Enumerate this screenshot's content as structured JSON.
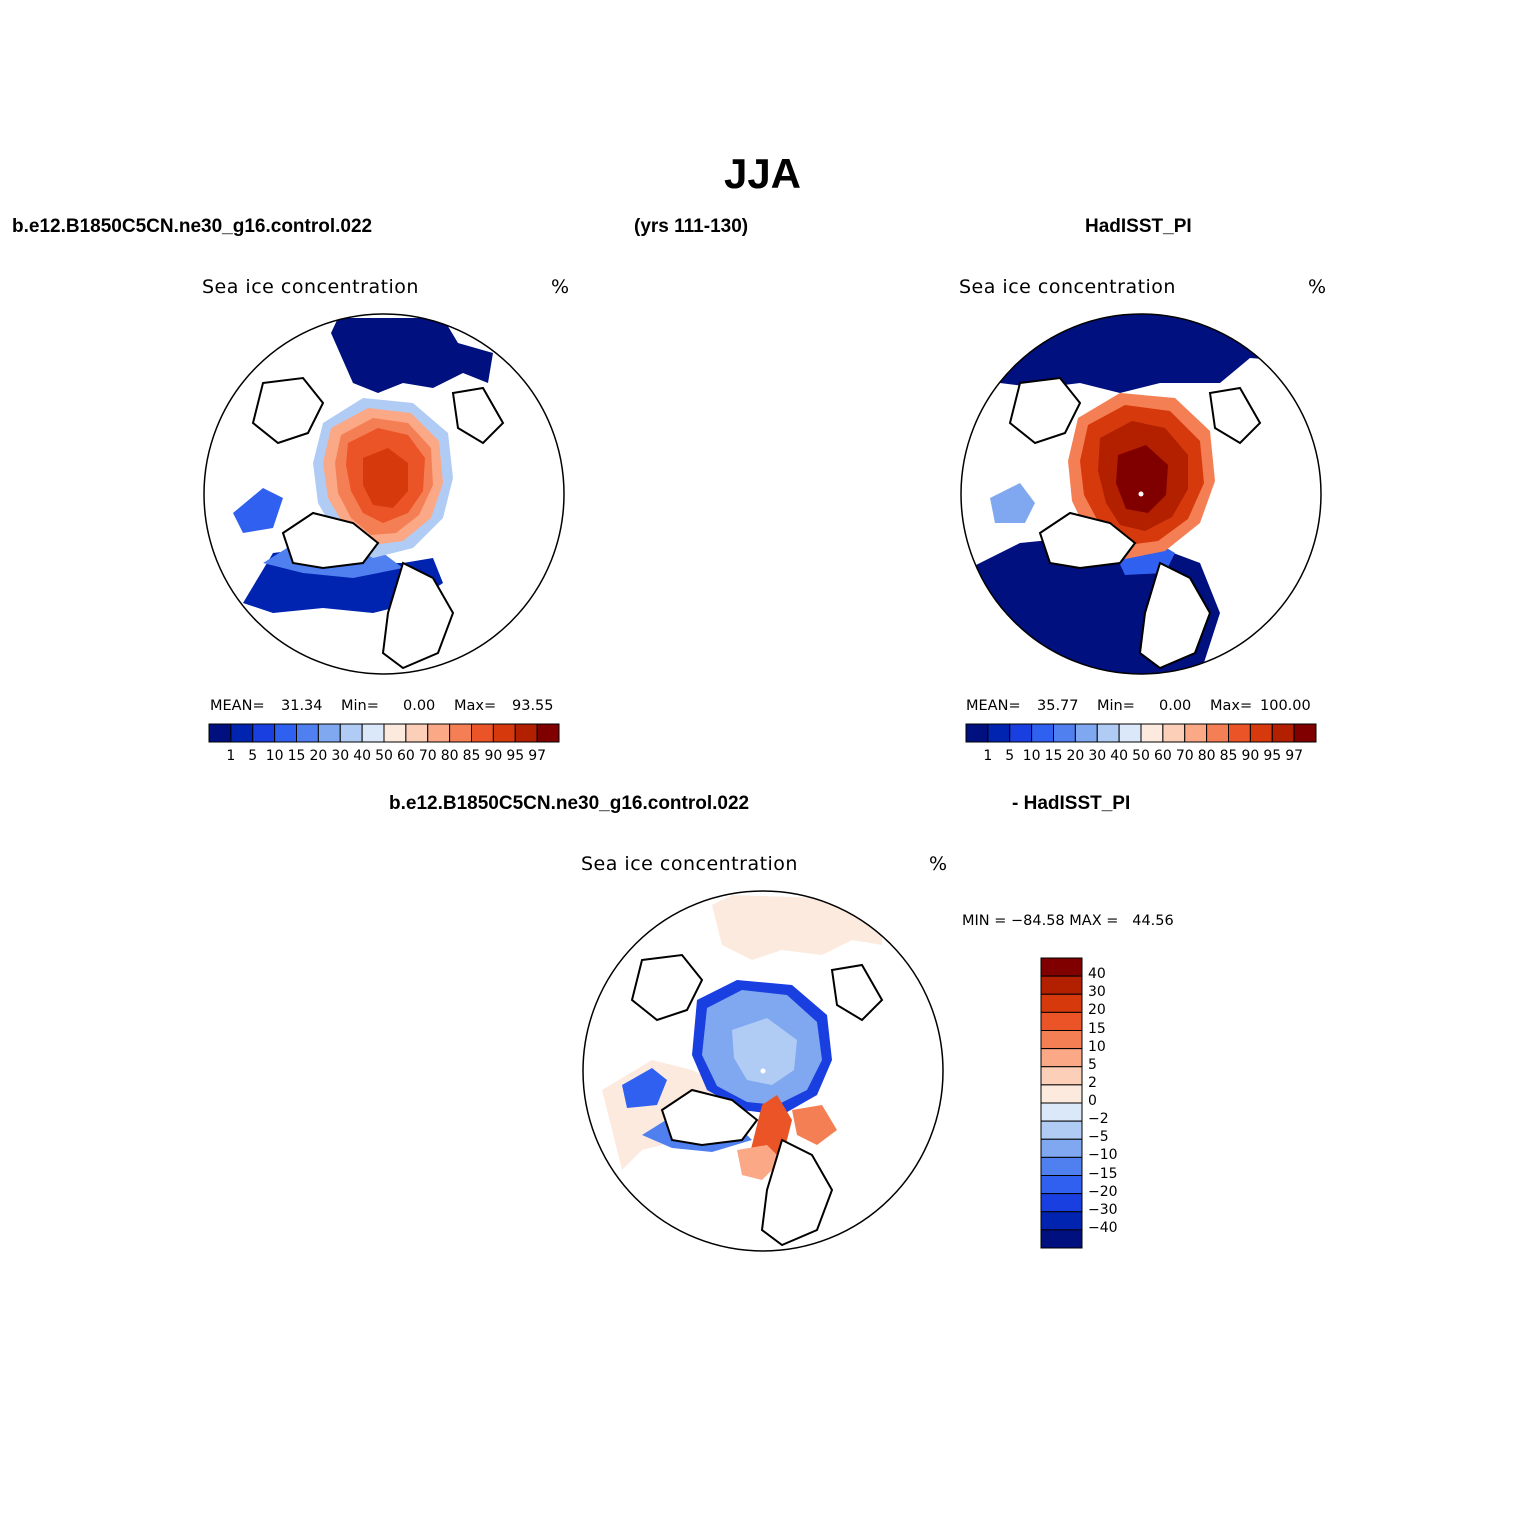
{
  "title": "JJA",
  "header": {
    "case_name": "b.e12.B1850C5CN.ne30_g16.control.022",
    "years": "(yrs 111-130)",
    "obs_name": "HadISST_PI",
    "diff_case": "b.e12.B1850C5CN.ne30_g16.control.022",
    "diff_obs": "- HadISST_PI"
  },
  "panels": {
    "model": {
      "title": "Sea ice concentration",
      "units": "%",
      "mean_label": "MEAN=",
      "mean": "31.34",
      "min_label": "Min=",
      "min": "0.00",
      "max_label": "Max=",
      "max": "93.55"
    },
    "obs": {
      "title": "Sea ice concentration",
      "units": "%",
      "mean_label": "MEAN=",
      "mean": "35.77",
      "min_label": "Min=",
      "min": "0.00",
      "max_label": "Max=",
      "max": "100.00"
    },
    "diff": {
      "title": "Sea ice concentration",
      "units": "%",
      "minmax_text": "MIN = −84.58 MAX =   44.56"
    }
  },
  "colors": {
    "abs_bar": [
      "#00107e",
      "#0023b0",
      "#1a3fe0",
      "#3060f0",
      "#5080f0",
      "#80a8f0",
      "#b0ccf4",
      "#dae8fa",
      "#fdeade",
      "#fcd0b8",
      "#fba886",
      "#f57f54",
      "#ea5426",
      "#d63a0c",
      "#b22000",
      "#800000"
    ],
    "diff_bar": [
      "#800000",
      "#b22000",
      "#d63a0c",
      "#ea5426",
      "#f57f54",
      "#fba886",
      "#fcd0b8",
      "#fdeade",
      "#dae8fa",
      "#b0ccf4",
      "#80a8f0",
      "#5080f0",
      "#3060f0",
      "#1a3fe0",
      "#0023b0",
      "#00107e"
    ]
  },
  "chart_data": [
    {
      "type": "heatmap",
      "projection": "north-polar-stereographic",
      "title": "Sea ice concentration",
      "units": "%",
      "levels": [
        "1",
        "5",
        "10",
        "15",
        "20",
        "30",
        "40",
        "50",
        "60",
        "70",
        "80",
        "85",
        "90",
        "95",
        "97"
      ],
      "stats": {
        "mean": 31.34,
        "min": 0.0,
        "max": 93.55
      }
    },
    {
      "type": "heatmap",
      "projection": "north-polar-stereographic",
      "title": "Sea ice concentration",
      "units": "%",
      "levels": [
        "1",
        "5",
        "10",
        "15",
        "20",
        "30",
        "40",
        "50",
        "60",
        "70",
        "80",
        "85",
        "90",
        "95",
        "97"
      ],
      "stats": {
        "mean": 35.77,
        "min": 0.0,
        "max": 100.0
      }
    },
    {
      "type": "heatmap",
      "projection": "north-polar-stereographic",
      "title": "Sea ice concentration",
      "units": "%",
      "levels": [
        "40",
        "30",
        "20",
        "15",
        "10",
        "5",
        "2",
        "0",
        "−2",
        "−5",
        "−10",
        "−15",
        "−20",
        "−30",
        "−40"
      ],
      "stats": {
        "min": -84.58,
        "max": 44.56
      }
    }
  ]
}
